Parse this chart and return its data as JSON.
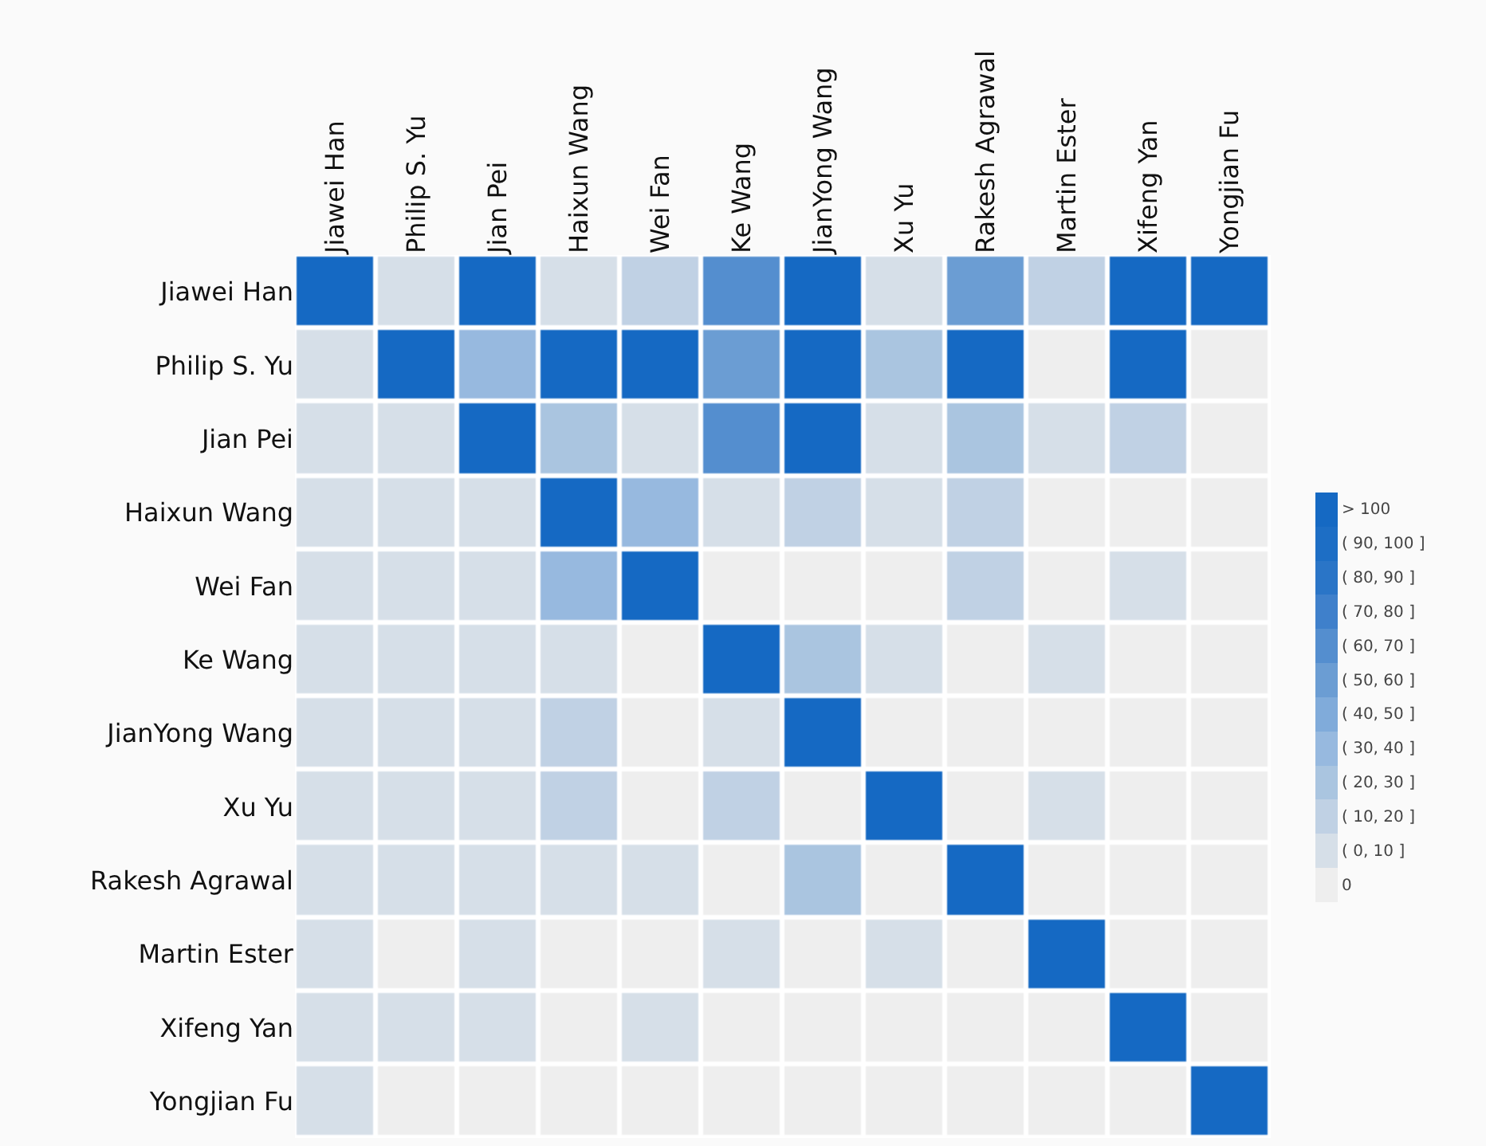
{
  "chart_data": {
    "type": "heatmap",
    "categories": [
      "Jiawei Han",
      "Philip S. Yu",
      "Jian Pei",
      "Haixun Wang",
      "Wei Fan",
      "Ke Wang",
      "JianYong Wang",
      "Xu Yu",
      "Rakesh Agrawal",
      "Martin Ester",
      "Xifeng Yan",
      "Yongjian Fu"
    ],
    "y_categories": [
      "Jiawei Han",
      "Philip S. Yu",
      "Jian Pei",
      "Haixun Wang",
      "Wei Fan",
      "Ke Wang",
      "JianYong Wang",
      "Xu Yu",
      "Rakesh Agrawal",
      "Martin Ester",
      "Xifeng Yan",
      "Yongjian Fu"
    ],
    "cells": [
      [
        110,
        10,
        110,
        10,
        20,
        70,
        110,
        10,
        60,
        20,
        110,
        110
      ],
      [
        10,
        110,
        40,
        110,
        110,
        60,
        110,
        30,
        110,
        0,
        110,
        0
      ],
      [
        10,
        10,
        110,
        30,
        10,
        70,
        110,
        10,
        30,
        10,
        20,
        0
      ],
      [
        10,
        10,
        10,
        110,
        40,
        10,
        20,
        10,
        20,
        0,
        0,
        0
      ],
      [
        10,
        10,
        10,
        40,
        110,
        0,
        0,
        0,
        20,
        0,
        10,
        0
      ],
      [
        10,
        10,
        10,
        10,
        0,
        110,
        30,
        10,
        0,
        10,
        0,
        0
      ],
      [
        10,
        10,
        10,
        20,
        0,
        10,
        110,
        0,
        0,
        0,
        0,
        0
      ],
      [
        10,
        10,
        10,
        20,
        0,
        20,
        0,
        110,
        0,
        10,
        0,
        0
      ],
      [
        10,
        10,
        10,
        10,
        10,
        0,
        30,
        0,
        110,
        0,
        0,
        0
      ],
      [
        10,
        0,
        10,
        0,
        0,
        10,
        0,
        10,
        0,
        110,
        0,
        0
      ],
      [
        10,
        10,
        10,
        0,
        10,
        0,
        0,
        0,
        0,
        0,
        110,
        0
      ],
      [
        10,
        0,
        0,
        0,
        0,
        0,
        0,
        0,
        0,
        0,
        0,
        110
      ]
    ],
    "clim": [
      -5,
      115
    ],
    "cticks": [
      {
        "value": 0,
        "label": "0"
      },
      {
        "value": 10,
        "label": "( 0, 10 ]"
      },
      {
        "value": 20,
        "label": "( 10, 20 ]"
      },
      {
        "value": 30,
        "label": "( 20, 30 ]"
      },
      {
        "value": 40,
        "label": "( 30, 40 ]"
      },
      {
        "value": 50,
        "label": "( 40, 50 ]"
      },
      {
        "value": 60,
        "label": "( 50, 60 ]"
      },
      {
        "value": 70,
        "label": "( 60, 70 ]"
      },
      {
        "value": 80,
        "label": "( 70, 80 ]"
      },
      {
        "value": 90,
        "label": "( 80, 90 ]"
      },
      {
        "value": 100,
        "label": "( 90, 100 ]"
      },
      {
        "value": 110,
        "label": "> 100"
      }
    ],
    "colors": [
      "#eeeeee",
      "#d6dfe8",
      "#c0d1e4",
      "#aac5e0",
      "#97b9df",
      "#80abda",
      "#6b9dd3",
      "#548ecf",
      "#3f80cb",
      "#2a75c7",
      "#1d6ec5",
      "#1569c3"
    ]
  }
}
